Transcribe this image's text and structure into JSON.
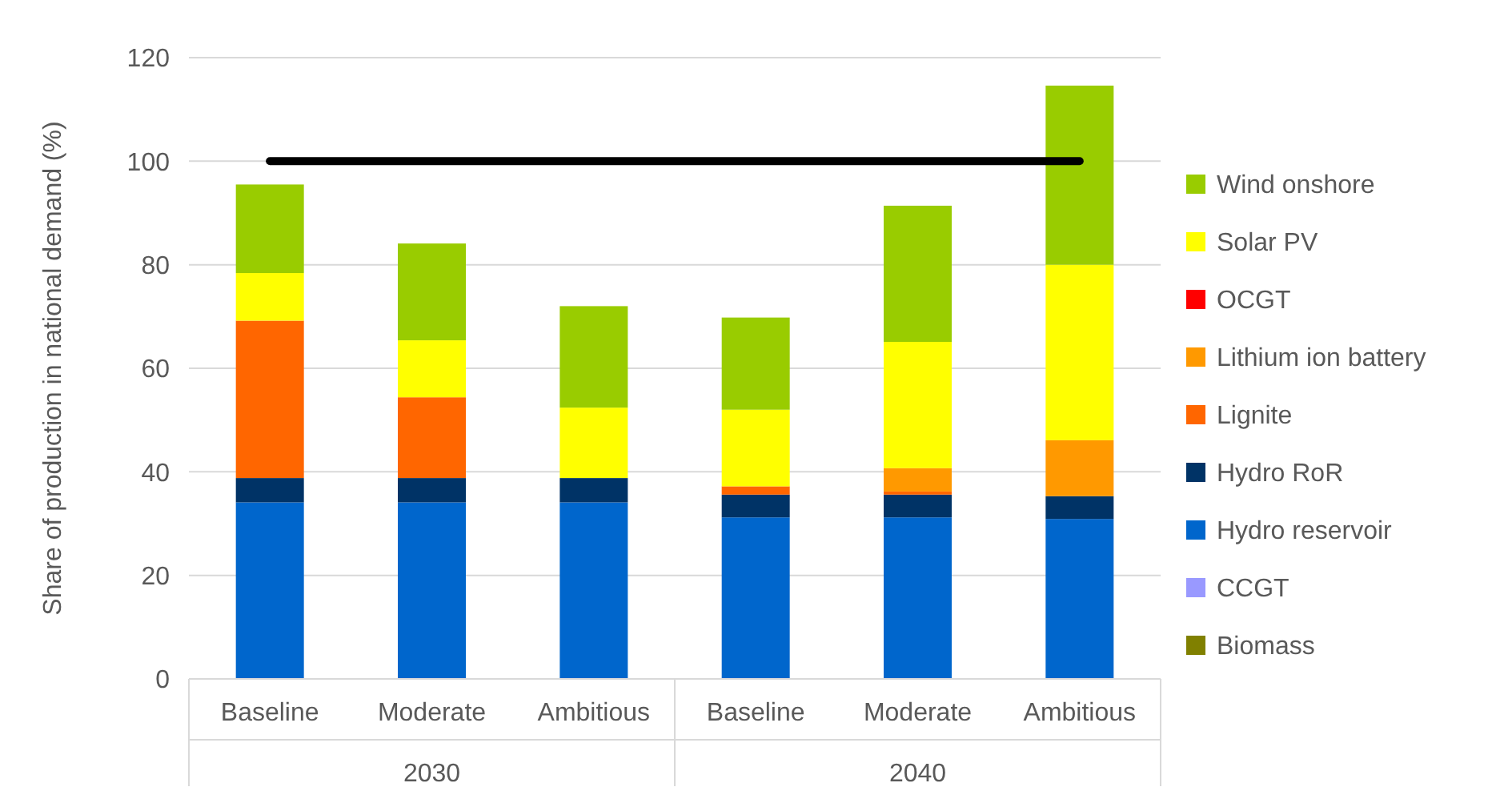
{
  "chart_data": {
    "type": "bar",
    "stacked": true,
    "ylabel": "Share of production in national demand (%)",
    "categories": [
      "Baseline",
      "Moderate",
      "Ambitious",
      "Baseline",
      "Moderate",
      "Ambitious"
    ],
    "annotations": [
      "2030",
      "2040"
    ],
    "ylim": [
      0,
      120
    ],
    "yticks": [
      0,
      20,
      40,
      60,
      80,
      100,
      120
    ],
    "grid": "y",
    "legend": "right",
    "ref_lines": [
      {
        "axis": "y",
        "value": 100,
        "color": "#000000"
      }
    ],
    "series": [
      {
        "name": "Biomass",
        "color": "#808000",
        "values": [
          0,
          0,
          0,
          0,
          0,
          0
        ]
      },
      {
        "name": "CCGT",
        "color": "#9999ff",
        "values": [
          0,
          0,
          0,
          0,
          0,
          0
        ]
      },
      {
        "name": "Hydro reservoir",
        "color": "#0066cc",
        "values": [
          34.1,
          34.1,
          34.1,
          31.2,
          31.2,
          30.9
        ]
      },
      {
        "name": "Hydro RoR",
        "color": "#003366",
        "values": [
          4.7,
          4.7,
          4.7,
          4.4,
          4.4,
          4.4
        ]
      },
      {
        "name": "Lignite",
        "color": "#ff6600",
        "values": [
          30.4,
          15.6,
          0,
          1.6,
          0.6,
          0
        ]
      },
      {
        "name": "Lithium ion battery",
        "color": "#ff9900",
        "values": [
          0,
          0,
          0,
          0,
          4.5,
          10.8
        ]
      },
      {
        "name": "OCGT",
        "color": "#ff0000",
        "values": [
          0,
          0,
          0,
          0,
          0,
          0
        ]
      },
      {
        "name": "Solar PV",
        "color": "#ffff00",
        "values": [
          9.2,
          11.0,
          13.6,
          14.8,
          24.4,
          33.9
        ]
      },
      {
        "name": "Wind onshore",
        "color": "#99cc00",
        "values": [
          17.1,
          18.7,
          19.6,
          17.8,
          26.3,
          34.6
        ]
      }
    ]
  }
}
